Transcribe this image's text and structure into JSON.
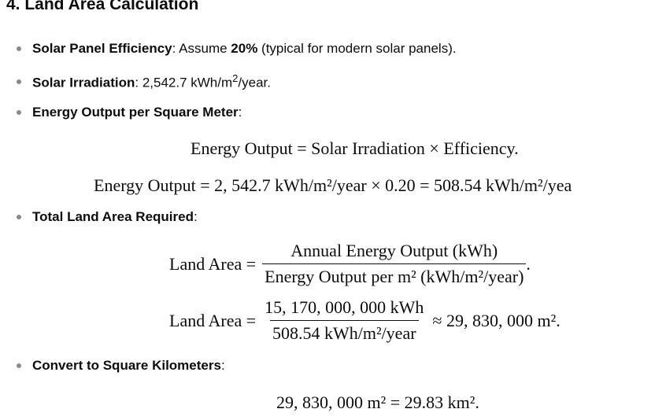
{
  "heading": "4. Land Area Calculation",
  "bullets": {
    "efficiency": {
      "label": "Solar Panel Efficiency",
      "text_before": ": Assume ",
      "value": "20%",
      "text_after": " (typical for modern solar panels)."
    },
    "irradiation": {
      "label": "Solar Irradiation",
      "text_before": ": 2,542.7 kWh/m",
      "sup": "2",
      "text_after": "/year."
    },
    "energy_output": {
      "label": "Energy Output per Square Meter",
      "text_after": ":"
    },
    "total_land": {
      "label": "Total Land Area Required",
      "text_after": ":"
    },
    "convert": {
      "label": "Convert to Square Kilometers",
      "text_after": ":"
    }
  },
  "equations": {
    "eq1": "Energy Output = Solar Irradiation × Efficiency.",
    "eq2": "Energy Output = 2, 542.7 kWh/m²/year × 0.20 = 508.54 kWh/m²/yea",
    "eq3": {
      "lhs": "Land Area =",
      "numerator": "Annual Energy Output (kWh)",
      "denominator": "Energy Output per m² (kWh/m²/year)",
      "tail": "."
    },
    "eq4": {
      "lhs": "Land Area =",
      "numerator": "15, 170, 000, 000 kWh",
      "denominator": "508.54 kWh/m²/year",
      "tail": "≈ 29, 830, 000 m²."
    },
    "eq5": "29, 830, 000 m² = 29.83 km²."
  }
}
